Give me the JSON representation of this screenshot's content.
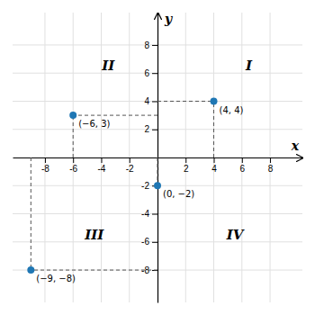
{
  "chart_data": {
    "type": "scatter",
    "x": [
      4,
      -6,
      -9,
      0
    ],
    "values": [
      4,
      3,
      -8,
      -2
    ],
    "value_labels": [
      "(4, 4)",
      "(−6, 3)",
      "(−9, −8)",
      "(0, −2)"
    ],
    "data_labels": true,
    "x_label": "x",
    "y_label": "y",
    "xlim": [
      -10.3,
      10.3
    ],
    "ylim": [
      -10.3,
      10.3
    ],
    "xticks": [
      -8,
      -6,
      -4,
      -2,
      2,
      4,
      6,
      8
    ],
    "yticks": [
      -8,
      -6,
      -4,
      -2,
      2,
      4,
      6,
      8
    ],
    "grid": true,
    "annotations": [
      {
        "text": "I",
        "x": 6.5,
        "y": 6.5
      },
      {
        "text": "II",
        "x": -3.5,
        "y": 6.5
      },
      {
        "text": "III",
        "x": -4.5,
        "y": -5.5
      },
      {
        "text": "IV",
        "x": 5.5,
        "y": -5.5
      }
    ]
  }
}
